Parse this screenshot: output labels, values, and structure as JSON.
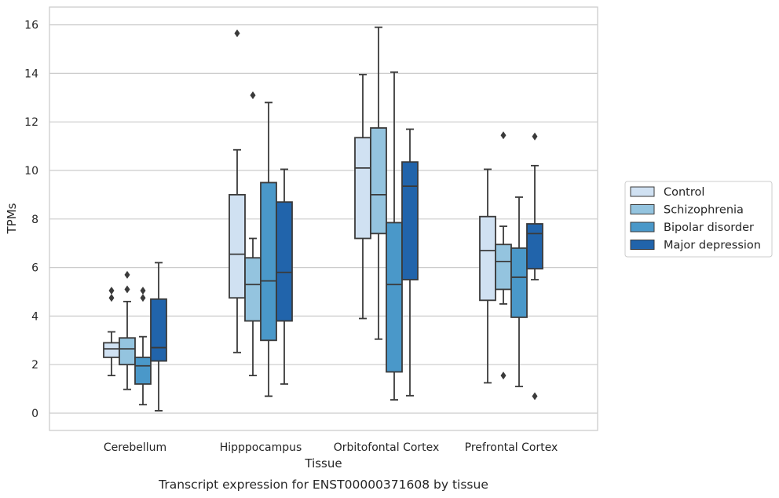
{
  "chart_data": {
    "type": "boxplot",
    "caption": "Transcript expression for ENST00000371608 by tissue",
    "xlabel": "Tissue",
    "ylabel": "TPMs",
    "ylim": [
      -0.7,
      16.7
    ],
    "yticks": [
      0,
      2,
      4,
      6,
      8,
      10,
      12,
      14,
      16
    ],
    "ytick_labels": [
      "0",
      "2",
      "4",
      "6",
      "8",
      "10",
      "12",
      "14",
      "16"
    ],
    "grid": "horizontal",
    "legend_position": "right-outside",
    "categories": [
      "Cerebellum",
      "Hipppocampus",
      "Orbitofontal Cortex",
      "Prefrontal Cortex"
    ],
    "series": [
      {
        "name": "Control",
        "color": "#d0e1f2",
        "boxes": [
          {
            "whislo": 1.55,
            "q1": 2.3,
            "med": 2.65,
            "q3": 2.9,
            "whishi": 3.35,
            "fliers": [
              4.75,
              5.05
            ]
          },
          {
            "whislo": 2.5,
            "q1": 4.75,
            "med": 6.55,
            "q3": 9.0,
            "whishi": 10.85,
            "fliers": [
              15.65
            ]
          },
          {
            "whislo": 3.9,
            "q1": 7.2,
            "med": 10.1,
            "q3": 11.35,
            "whishi": 13.95,
            "fliers": []
          },
          {
            "whislo": 1.25,
            "q1": 4.65,
            "med": 6.7,
            "q3": 8.1,
            "whishi": 10.05,
            "fliers": []
          }
        ]
      },
      {
        "name": "Schizophrenia",
        "color": "#94c4df",
        "boxes": [
          {
            "whislo": 0.98,
            "q1": 2.0,
            "med": 2.65,
            "q3": 3.1,
            "whishi": 4.6,
            "fliers": [
              5.1,
              5.7
            ]
          },
          {
            "whislo": 1.55,
            "q1": 3.8,
            "med": 5.3,
            "q3": 6.4,
            "whishi": 7.2,
            "fliers": [
              13.1
            ]
          },
          {
            "whislo": 3.05,
            "q1": 7.4,
            "med": 9.0,
            "q3": 11.75,
            "whishi": 15.9,
            "fliers": []
          },
          {
            "whislo": 4.5,
            "q1": 5.1,
            "med": 6.25,
            "q3": 6.95,
            "whishi": 7.7,
            "fliers": [
              1.55,
              11.45
            ]
          }
        ]
      },
      {
        "name": "Bipolar disorder",
        "color": "#4a98c9",
        "boxes": [
          {
            "whislo": 0.35,
            "q1": 1.2,
            "med": 1.95,
            "q3": 2.3,
            "whishi": 3.15,
            "fliers": [
              4.75,
              5.05
            ]
          },
          {
            "whislo": 0.7,
            "q1": 3.0,
            "med": 5.45,
            "q3": 9.5,
            "whishi": 12.8,
            "fliers": []
          },
          {
            "whislo": 0.55,
            "q1": 1.7,
            "med": 5.3,
            "q3": 7.85,
            "whishi": 14.05,
            "fliers": []
          },
          {
            "whislo": 1.1,
            "q1": 3.95,
            "med": 5.6,
            "q3": 6.8,
            "whishi": 8.9,
            "fliers": []
          }
        ]
      },
      {
        "name": "Major depression",
        "color": "#2164ab",
        "boxes": [
          {
            "whislo": 0.1,
            "q1": 2.15,
            "med": 2.7,
            "q3": 4.7,
            "whishi": 6.2,
            "fliers": []
          },
          {
            "whislo": 1.2,
            "q1": 3.8,
            "med": 5.8,
            "q3": 8.7,
            "whishi": 10.05,
            "fliers": []
          },
          {
            "whislo": 0.72,
            "q1": 5.5,
            "med": 9.35,
            "q3": 10.35,
            "whishi": 11.7,
            "fliers": []
          },
          {
            "whislo": 5.5,
            "q1": 5.95,
            "med": 7.4,
            "q3": 7.8,
            "whishi": 10.2,
            "fliers": [
              0.7,
              11.4
            ]
          }
        ]
      }
    ]
  }
}
